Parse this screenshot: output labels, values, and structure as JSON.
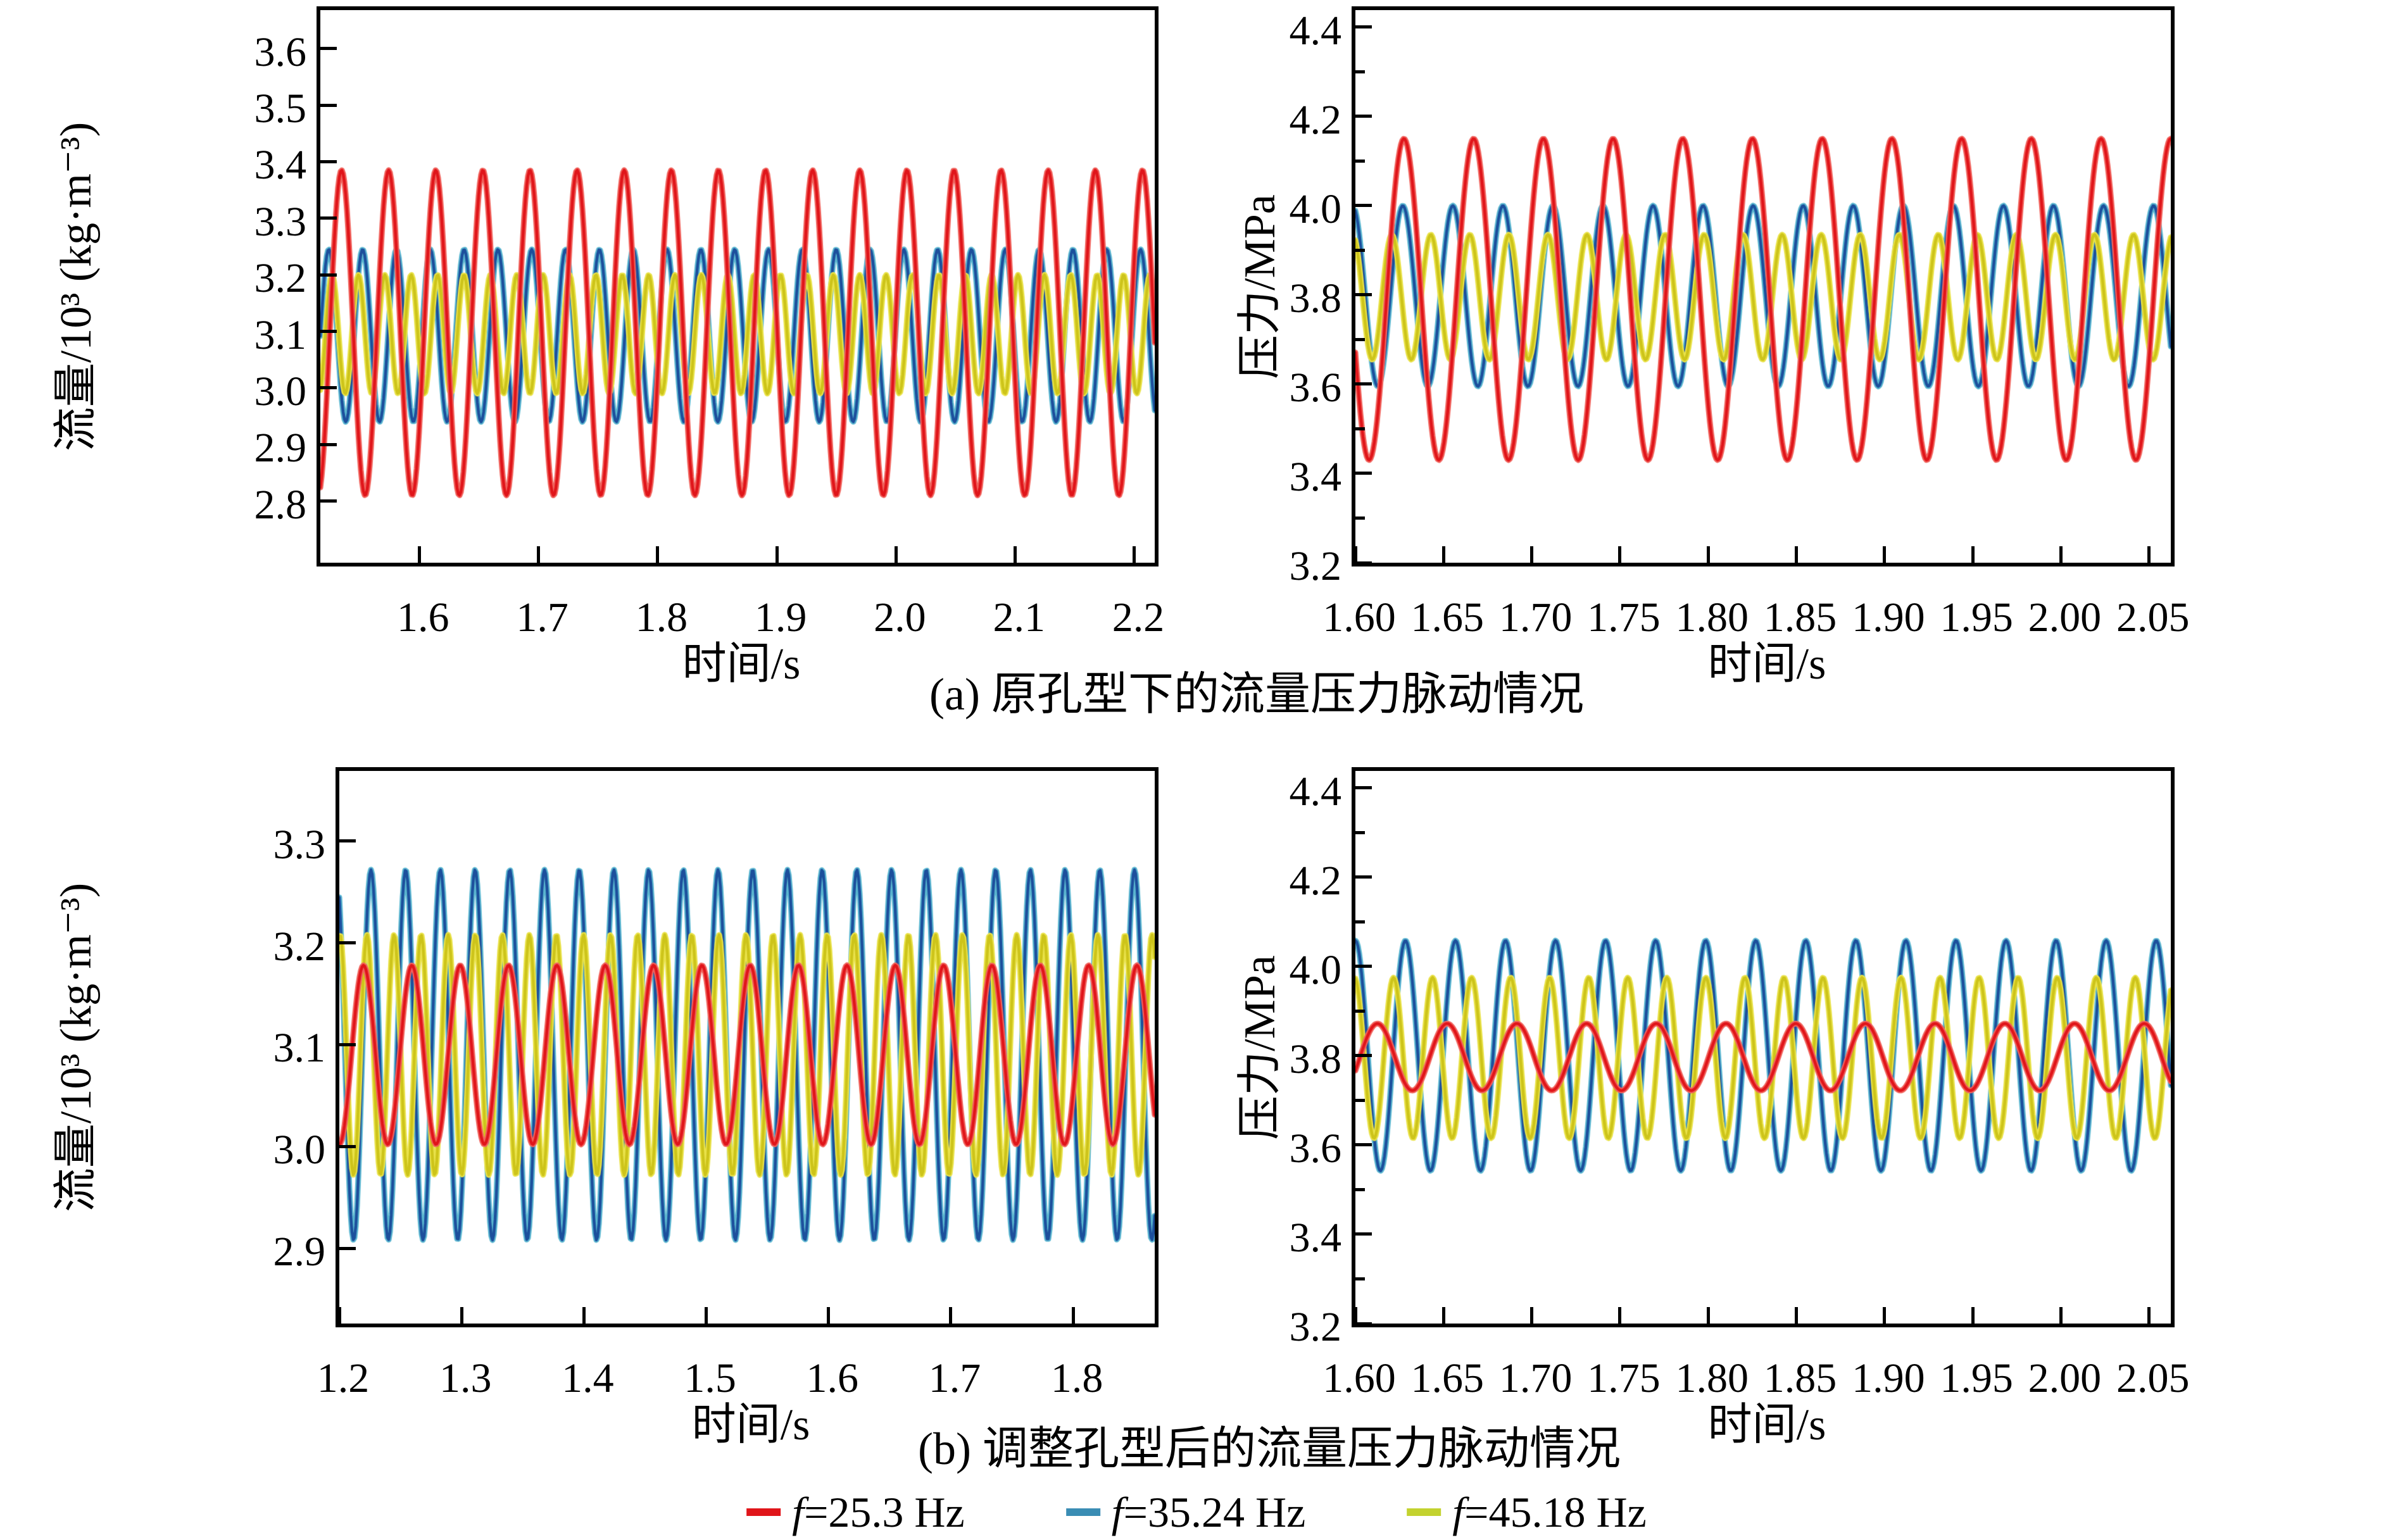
{
  "figure": {
    "background_color": "#ffffff",
    "caption_a": "(a) 原孔型下的流量压力脉动情况",
    "caption_b": "(b) 调整孔型后的流量压力脉动情况",
    "time_axis_label": "时间/s",
    "flow_axis_label": "流量/10³ (kg·m⁻³)",
    "pressure_axis_label": "压力/MPa",
    "legend": {
      "items": [
        {
          "label": "f=25.3 Hz",
          "color": "#e0151a"
        },
        {
          "label": "f=35.24 Hz",
          "color": "#3a8db4"
        },
        {
          "label": "f=45.18 Hz",
          "color": "#c3d22f"
        }
      ]
    }
  },
  "chart_data": [
    {
      "id": "flow-original",
      "panel": "a",
      "type": "line",
      "waveform": "sine",
      "title": "",
      "xlabel": "时间/s",
      "ylabel": "流量/10³ (kg·m⁻³)",
      "xlim": [
        1.517,
        2.217
      ],
      "ylim": [
        2.691,
        3.668
      ],
      "xticks": [
        1.6,
        1.7,
        1.8,
        1.9,
        2.0,
        2.1,
        2.2
      ],
      "xtick_labels": [
        "1.6",
        "1.7",
        "1.8",
        "1.9",
        "2.0",
        "2.1",
        "2.2"
      ],
      "yticks": [
        2.8,
        2.9,
        3.0,
        3.1,
        3.2,
        3.3,
        3.4,
        3.5,
        3.6
      ],
      "ytick_labels": [
        "2.8",
        "2.9",
        "3.0",
        "3.1",
        "3.2",
        "3.3",
        "3.4",
        "3.5",
        "3.6"
      ],
      "y_minor_ticks": [],
      "grid": false,
      "series": [
        {
          "name": "f=35.24 Hz",
          "frequency_hz": 35.24,
          "mean": 3.0925,
          "amplitude": 0.1525,
          "peak_time_s": 1.5525,
          "color": "#1c4f9c",
          "halo_color": "#5ab6d0"
        },
        {
          "name": "f=45.18 Hz",
          "frequency_hz": 45.18,
          "mean": 3.095,
          "amplitude": 0.105,
          "peak_time_s": 1.549,
          "color": "#cdc41a",
          "halo_color": "#e9e24a"
        },
        {
          "name": "f=25.3 Hz",
          "frequency_hz": 25.3,
          "mean": 3.0975,
          "amplitude": 0.2875,
          "peak_time_s": 1.5348,
          "color": "#e0151a",
          "halo_color": "#f0625c"
        }
      ]
    },
    {
      "id": "pressure-original",
      "panel": "a",
      "type": "line",
      "waveform": "sine",
      "title": "",
      "xlabel": "时间/s",
      "ylabel": "压力/MPa",
      "xlim": [
        1.6,
        2.0623
      ],
      "ylim": [
        3.2,
        4.438
      ],
      "xticks": [
        1.6,
        1.65,
        1.7,
        1.75,
        1.8,
        1.85,
        1.9,
        1.95,
        2.0,
        2.05
      ],
      "xtick_labels": [
        "1.60",
        "1.65",
        "1.70",
        "1.75",
        "1.80",
        "1.85",
        "1.90",
        "1.95",
        "2.00",
        "2.05"
      ],
      "yticks": [
        3.2,
        3.4,
        3.6,
        3.8,
        4.0,
        4.2,
        4.4
      ],
      "ytick_labels": [
        "3.2",
        "3.4",
        "3.6",
        "3.8",
        "4.0",
        "4.2",
        "4.4"
      ],
      "y_minor_ticks": [
        3.3,
        3.5,
        3.7,
        3.9,
        4.1,
        4.3
      ],
      "grid": false,
      "series": [
        {
          "name": "f=35.24 Hz",
          "frequency_hz": 35.24,
          "mean": 3.7975,
          "amplitude": 0.2025,
          "peak_time_s": 1.5985,
          "color": "#1c4f9c",
          "halo_color": "#5ab6d0"
        },
        {
          "name": "f=45.18 Hz",
          "frequency_hz": 45.18,
          "mean": 3.795,
          "amplitude": 0.14,
          "peak_time_s": 1.5985,
          "color": "#cdc41a",
          "halo_color": "#e9e24a"
        },
        {
          "name": "f=25.3 Hz",
          "frequency_hz": 25.3,
          "mean": 3.79,
          "amplitude": 0.36,
          "peak_time_s": 1.588,
          "color": "#e0151a",
          "halo_color": "#f0625c"
        }
      ]
    },
    {
      "id": "flow-adjusted",
      "panel": "b",
      "type": "line",
      "waveform": "sine",
      "title": "",
      "xlabel": "时间/s",
      "ylabel": "流量/10³ (kg·m⁻³)",
      "xlim": [
        1.2,
        1.8667
      ],
      "ylim": [
        2.826,
        3.369
      ],
      "xticks": [
        1.2,
        1.3,
        1.4,
        1.5,
        1.6,
        1.7,
        1.8
      ],
      "xtick_labels": [
        "1.2",
        "1.3",
        "1.4",
        "1.5",
        "1.6",
        "1.7",
        "1.8"
      ],
      "yticks": [
        2.9,
        3.0,
        3.1,
        3.2,
        3.3
      ],
      "ytick_labels": [
        "2.9",
        "3.0",
        "3.1",
        "3.2",
        "3.3"
      ],
      "y_minor_ticks": [],
      "grid": false,
      "series": [
        {
          "name": "f=35.24 Hz",
          "frequency_hz": 35.24,
          "mean": 3.09,
          "amplitude": 0.182,
          "peak_time_s": 1.1975,
          "color": "#1c4f9c",
          "halo_color": "#5ab6d0"
        },
        {
          "name": "f=45.18 Hz",
          "frequency_hz": 45.18,
          "mean": 3.09,
          "amplitude": 0.118,
          "peak_time_s": 1.2005,
          "color": "#cdc41a",
          "halo_color": "#e9e24a"
        },
        {
          "name": "f=25.3 Hz",
          "frequency_hz": 25.3,
          "mean": 3.09,
          "amplitude": 0.088,
          "peak_time_s": 1.2198,
          "color": "#e0151a",
          "halo_color": "#f0625c"
        }
      ]
    },
    {
      "id": "pressure-adjusted",
      "panel": "b",
      "type": "line",
      "waveform": "sine",
      "title": "",
      "xlabel": "时间/s",
      "ylabel": "压力/MPa",
      "xlim": [
        1.6,
        2.0623
      ],
      "ylim": [
        3.2,
        4.438
      ],
      "xticks": [
        1.6,
        1.65,
        1.7,
        1.75,
        1.8,
        1.85,
        1.9,
        1.95,
        2.0,
        2.05
      ],
      "xtick_labels": [
        "1.60",
        "1.65",
        "1.70",
        "1.75",
        "1.80",
        "1.85",
        "1.90",
        "1.95",
        "2.00",
        "2.05"
      ],
      "yticks": [
        3.2,
        3.4,
        3.6,
        3.8,
        4.0,
        4.2,
        4.4
      ],
      "ytick_labels": [
        "3.2",
        "3.4",
        "3.6",
        "3.8",
        "4.0",
        "4.2",
        "4.4"
      ],
      "y_minor_ticks": [
        3.3,
        3.5,
        3.7,
        3.9,
        4.1,
        4.3
      ],
      "grid": false,
      "series": [
        {
          "name": "f=35.24 Hz",
          "frequency_hz": 35.24,
          "mean": 3.8,
          "amplitude": 0.258,
          "peak_time_s": 1.6,
          "color": "#1c4f9c",
          "halo_color": "#5ab6d0"
        },
        {
          "name": "f=45.18 Hz",
          "frequency_hz": 45.18,
          "mean": 3.795,
          "amplitude": 0.18,
          "peak_time_s": 1.5995,
          "color": "#cdc41a",
          "halo_color": "#e9e24a"
        },
        {
          "name": "f=25.3 Hz",
          "frequency_hz": 25.3,
          "mean": 3.797,
          "amplitude": 0.075,
          "peak_time_s": 1.6125,
          "color": "#e0151a",
          "halo_color": "#f0625c"
        }
      ]
    }
  ]
}
